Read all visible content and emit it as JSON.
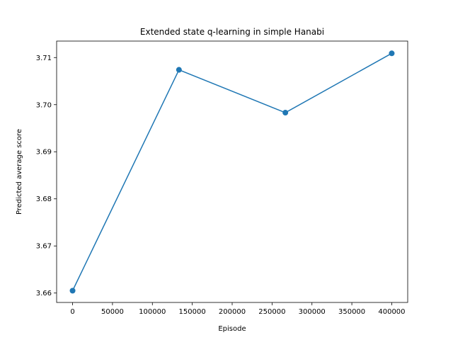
{
  "chart_data": {
    "type": "line",
    "title": "Extended state q-learning in simple Hanabi",
    "xlabel": "Episode",
    "ylabel": "Predicted average score",
    "xlim": [
      -20000,
      420000
    ],
    "ylim": [
      3.658,
      3.7135
    ],
    "xticks": [
      0,
      50000,
      100000,
      150000,
      200000,
      250000,
      300000,
      350000,
      400000
    ],
    "yticks": [
      3.66,
      3.67,
      3.68,
      3.69,
      3.7,
      3.71
    ],
    "xtick_labels": [
      "0",
      "50000",
      "100000",
      "150000",
      "200000",
      "250000",
      "300000",
      "350000",
      "400000"
    ],
    "ytick_labels": [
      "3.66",
      "3.67",
      "3.68",
      "3.69",
      "3.70",
      "3.71"
    ],
    "grid": false,
    "series": [
      {
        "color": "#1f77b4",
        "marker": "circle",
        "x": [
          0,
          133333,
          266667,
          400000
        ],
        "y": [
          3.6605,
          3.7074,
          3.6983,
          3.7109
        ]
      }
    ]
  }
}
